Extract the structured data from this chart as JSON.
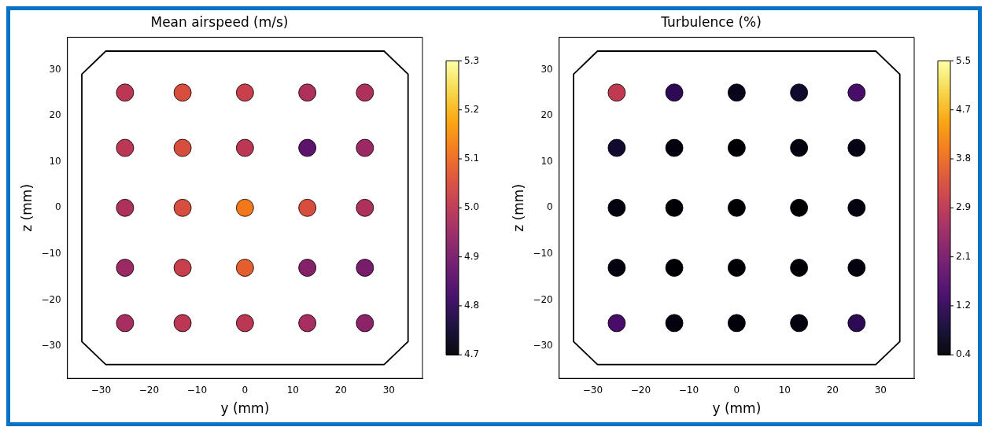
{
  "chart_data": [
    {
      "type": "scatter",
      "title": "Mean airspeed (m/s)",
      "xlabel": "y (mm)",
      "ylabel": "z (mm)",
      "marker": "circle",
      "color": "#000000",
      "grid": false,
      "xlim": [
        -37,
        37
      ],
      "ylim": [
        -37,
        37
      ],
      "xticks": [
        -30,
        -20,
        -10,
        0,
        10,
        20,
        30
      ],
      "yticks": [
        -30,
        -20,
        -10,
        0,
        10,
        20,
        30
      ],
      "x": [
        -25,
        -13,
        0,
        13,
        25,
        -25,
        -13,
        0,
        13,
        25,
        -25,
        -13,
        0,
        13,
        25,
        -25,
        -13,
        0,
        13,
        25,
        -25,
        -13,
        0,
        13,
        25
      ],
      "values": [
        25,
        25,
        25,
        25,
        25,
        13,
        13,
        13,
        13,
        13,
        0,
        0,
        0,
        0,
        0,
        -13,
        -13,
        -13,
        -13,
        -13,
        -25,
        -25,
        -25,
        -25,
        -25
      ],
      "cvalues": [
        5.0,
        5.05,
        5.02,
        4.98,
        4.98,
        5.0,
        5.05,
        5.0,
        4.86,
        4.95,
        4.98,
        5.05,
        5.12,
        5.05,
        4.98,
        4.95,
        5.02,
        5.08,
        4.92,
        4.9,
        4.97,
        5.0,
        5.0,
        4.97,
        4.93
      ],
      "clim": [
        4.7,
        5.3
      ],
      "cticks": [
        4.7,
        4.8,
        4.9,
        {
          "value": 5,
          "label": "5.0"
        },
        5.1,
        5.2,
        5.3
      ]
    },
    {
      "type": "scatter",
      "title": "Turbulence (%)",
      "xlabel": "y (mm)",
      "ylabel": "z (mm)",
      "marker": "circle",
      "color": "#000000",
      "grid": false,
      "xlim": [
        -37,
        37
      ],
      "ylim": [
        -37,
        37
      ],
      "xticks": [
        -30,
        -20,
        -10,
        0,
        10,
        20,
        30
      ],
      "yticks": [
        -30,
        -20,
        -10,
        0,
        10,
        20,
        30
      ],
      "x": [
        -25,
        -13,
        0,
        13,
        25,
        -25,
        -13,
        0,
        13,
        25,
        -25,
        -13,
        0,
        13,
        25,
        -25,
        -13,
        0,
        13,
        25,
        -25,
        -13,
        0,
        13,
        25
      ],
      "values": [
        25,
        25,
        25,
        25,
        25,
        13,
        13,
        13,
        13,
        13,
        0,
        0,
        0,
        0,
        0,
        -13,
        -13,
        -13,
        -13,
        -13,
        -25,
        -25,
        -25,
        -25,
        -25
      ],
      "cvalues": [
        3.0,
        1.2,
        0.6,
        0.8,
        1.5,
        0.8,
        0.5,
        0.4,
        0.5,
        0.55,
        0.5,
        0.4,
        0.4,
        0.4,
        0.5,
        0.5,
        0.4,
        0.4,
        0.4,
        0.5,
        1.5,
        0.5,
        0.45,
        0.5,
        1.2
      ],
      "clim": [
        0.4,
        5.5
      ],
      "cticks": [
        0.4,
        {
          "value": 1.25,
          "label": "1.2"
        },
        2.1,
        {
          "value": 2.95,
          "label": "2.9"
        },
        3.8,
        {
          "value": 4.65,
          "label": "4.7"
        },
        5.5
      ]
    }
  ]
}
